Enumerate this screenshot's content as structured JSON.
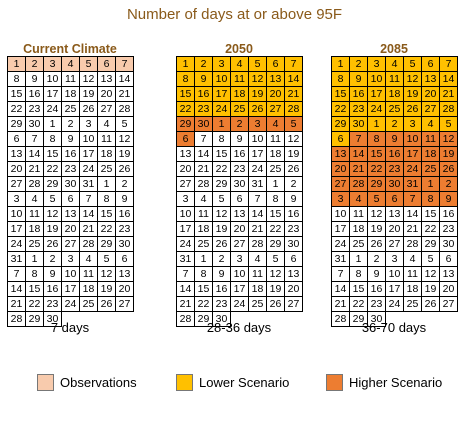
{
  "chart_data": {
    "type": "calendar",
    "title": "Number of days at or above 95F",
    "panels": [
      {
        "title": "Current Climate",
        "summary": "7 days",
        "first_day": 1,
        "month_lengths": [
          30,
          31,
          31,
          30
        ],
        "days_over": 7,
        "highlight": [
          {
            "from": 1,
            "to": 7,
            "category": "obs"
          }
        ]
      },
      {
        "title": "2050",
        "summary": "28-36 days",
        "first_day": 1,
        "month_lengths": [
          30,
          31,
          31,
          30
        ],
        "days_over_range": [
          28,
          36
        ],
        "highlight": [
          {
            "from": 1,
            "to": 28,
            "category": "low"
          },
          {
            "from": 29,
            "to": 36,
            "category": "high"
          }
        ]
      },
      {
        "title": "2085",
        "summary": "36-70 days",
        "first_day": 1,
        "month_lengths": [
          30,
          31,
          31,
          30
        ],
        "days_over_range": [
          36,
          70
        ],
        "highlight": [
          {
            "from": 1,
            "to": 36,
            "category": "low"
          },
          {
            "from": 37,
            "to": 70,
            "category": "high"
          }
        ]
      }
    ],
    "legend": [
      {
        "key": "obs",
        "label": "Observations",
        "color": "#f8cbad"
      },
      {
        "key": "low",
        "label": "Lower Scenario",
        "color": "#ffc000"
      },
      {
        "key": "high",
        "label": "Higher Scenario",
        "color": "#ed7d31"
      }
    ]
  }
}
